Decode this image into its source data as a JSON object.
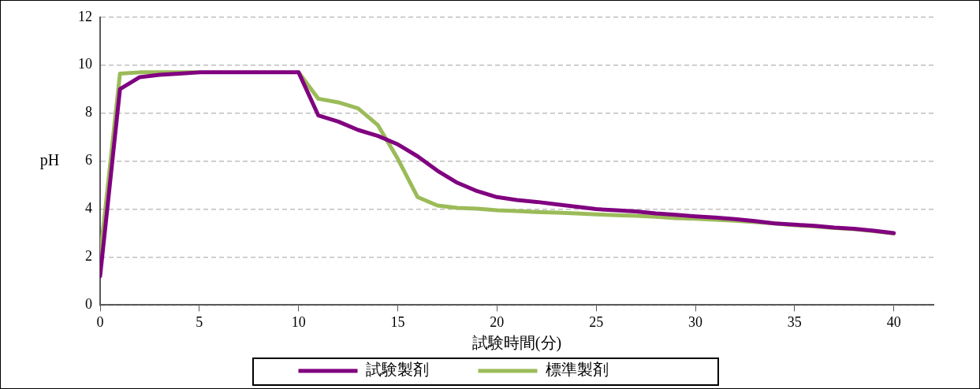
{
  "chart_data": {
    "type": "line",
    "xlabel": "試験時間(分)",
    "ylabel": "pH",
    "xlim": [
      0,
      42
    ],
    "xticks": [
      0,
      5,
      10,
      15,
      20,
      25,
      30,
      35,
      40
    ],
    "ylim": [
      0,
      12
    ],
    "yticks": [
      0,
      2,
      4,
      6,
      8,
      10,
      12
    ],
    "grid": "y",
    "legend": "bottom",
    "marker": "none",
    "line_style": "solid",
    "x": [
      0,
      1,
      2,
      3,
      4,
      5,
      6,
      7,
      8,
      9,
      10,
      11,
      12,
      13,
      14,
      15,
      16,
      17,
      18,
      19,
      20,
      21,
      22,
      23,
      24,
      25,
      26,
      27,
      28,
      29,
      30,
      31,
      32,
      33,
      34,
      35,
      36,
      37,
      38,
      39,
      40
    ],
    "series": [
      {
        "name": "試験製剤",
        "color": "#800080",
        "values": [
          1.2,
          9.0,
          9.5,
          9.6,
          9.65,
          9.7,
          9.7,
          9.7,
          9.7,
          9.7,
          9.7,
          7.9,
          7.65,
          7.3,
          7.05,
          6.7,
          6.2,
          5.6,
          5.1,
          4.75,
          4.5,
          4.38,
          4.3,
          4.2,
          4.1,
          4.0,
          3.95,
          3.9,
          3.82,
          3.76,
          3.7,
          3.65,
          3.58,
          3.5,
          3.4,
          3.35,
          3.3,
          3.23,
          3.18,
          3.1,
          3.0
        ]
      },
      {
        "name": "標準製剤",
        "color": "#9bbb59",
        "values": [
          2.0,
          9.65,
          9.7,
          9.7,
          9.7,
          9.7,
          null,
          null,
          null,
          null,
          9.7,
          8.6,
          8.45,
          8.2,
          7.5,
          6.1,
          4.5,
          4.15,
          4.05,
          4.02,
          3.95,
          3.92,
          3.88,
          3.85,
          3.82,
          3.78,
          3.75,
          3.72,
          3.68,
          3.62,
          3.6,
          3.56,
          3.52,
          3.46,
          3.4,
          3.33,
          3.28,
          3.21,
          3.16,
          3.08,
          2.98
        ]
      }
    ]
  }
}
